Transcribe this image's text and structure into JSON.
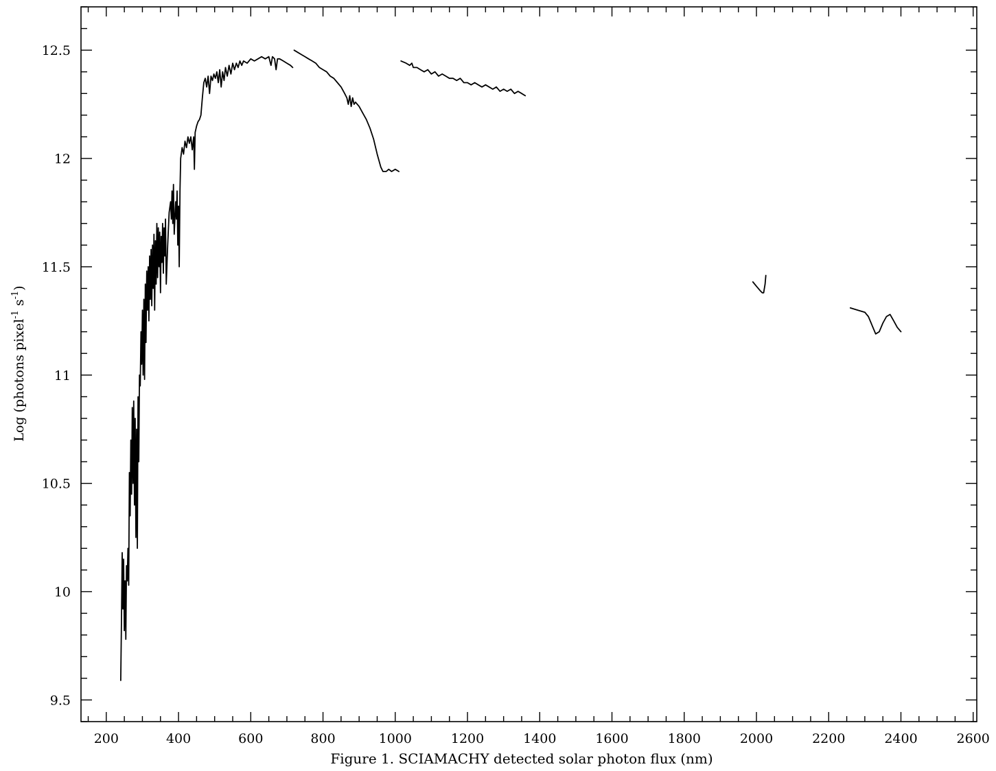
{
  "chart_data": {
    "type": "line",
    "title": "",
    "caption": "Figure 1.  SCIAMACHY detected solar photon flux (nm)",
    "ylabel": "Log (photons pixel",
    "ylabel_sup": "-1",
    "ylabel_mid": " s",
    "ylabel_sup2": "-1",
    "ylabel_end": ")",
    "xlim": [
      130,
      2610
    ],
    "ylim": [
      9.4,
      12.7
    ],
    "x_ticks": [
      200,
      400,
      600,
      800,
      1000,
      1200,
      1400,
      1600,
      1800,
      2000,
      2200,
      2400,
      2600
    ],
    "x_tick_labels": [
      "200",
      "400",
      "600",
      "800",
      "1000",
      "1200",
      "1400",
      "1600",
      "1800",
      "2000",
      "2200",
      "2400",
      "2600"
    ],
    "x_minor_step": 50,
    "y_ticks": [
      9.5,
      10,
      10.5,
      11,
      11.5,
      12,
      12.5
    ],
    "y_tick_labels": [
      "9.5",
      "10",
      "10.5",
      "11",
      "11.5",
      "12",
      "12.5"
    ],
    "y_minor_step": 0.1,
    "grid": false,
    "series": [
      {
        "values": [
          [
            240,
            9.59
          ],
          [
            242,
            9.85
          ],
          [
            244,
            10.18
          ],
          [
            246,
            9.92
          ],
          [
            248,
            10.15
          ],
          [
            250,
            9.82
          ],
          [
            252,
            10.05
          ],
          [
            254,
            9.78
          ],
          [
            256,
            10.12
          ],
          [
            258,
            10.05
          ],
          [
            260,
            10.2
          ],
          [
            262,
            10.03
          ],
          [
            264,
            10.55
          ],
          [
            266,
            10.35
          ],
          [
            268,
            10.7
          ],
          [
            270,
            10.45
          ],
          [
            272,
            10.85
          ],
          [
            274,
            10.5
          ],
          [
            276,
            10.88
          ],
          [
            278,
            10.4
          ],
          [
            280,
            10.8
          ],
          [
            282,
            10.25
          ],
          [
            284,
            10.75
          ],
          [
            286,
            10.2
          ],
          [
            288,
            10.9
          ],
          [
            290,
            10.6
          ],
          [
            292,
            11.0
          ],
          [
            294,
            10.95
          ],
          [
            296,
            11.2
          ],
          [
            298,
            11.05
          ],
          [
            300,
            11.3
          ],
          [
            302,
            11.0
          ],
          [
            304,
            11.35
          ],
          [
            306,
            10.98
          ],
          [
            308,
            11.42
          ],
          [
            310,
            11.15
          ],
          [
            312,
            11.48
          ],
          [
            314,
            11.3
          ],
          [
            316,
            11.5
          ],
          [
            318,
            11.25
          ],
          [
            320,
            11.55
          ],
          [
            322,
            11.35
          ],
          [
            324,
            11.58
          ],
          [
            326,
            11.32
          ],
          [
            328,
            11.6
          ],
          [
            330,
            11.4
          ],
          [
            332,
            11.65
          ],
          [
            334,
            11.3
          ],
          [
            336,
            11.62
          ],
          [
            338,
            11.42
          ],
          [
            340,
            11.7
          ],
          [
            342,
            11.45
          ],
          [
            344,
            11.68
          ],
          [
            346,
            11.5
          ],
          [
            348,
            11.66
          ],
          [
            350,
            11.38
          ],
          [
            352,
            11.64
          ],
          [
            354,
            11.52
          ],
          [
            356,
            11.7
          ],
          [
            358,
            11.47
          ],
          [
            360,
            11.68
          ],
          [
            362,
            11.55
          ],
          [
            364,
            11.72
          ],
          [
            366,
            11.42
          ],
          [
            370,
            11.6
          ],
          [
            374,
            11.75
          ],
          [
            378,
            11.8
          ],
          [
            380,
            11.72
          ],
          [
            382,
            11.85
          ],
          [
            384,
            11.7
          ],
          [
            386,
            11.88
          ],
          [
            388,
            11.65
          ],
          [
            392,
            11.8
          ],
          [
            394,
            11.72
          ],
          [
            396,
            11.85
          ],
          [
            398,
            11.6
          ],
          [
            400,
            11.78
          ],
          [
            402,
            11.5
          ],
          [
            404,
            11.85
          ],
          [
            406,
            12.0
          ],
          [
            410,
            12.05
          ],
          [
            414,
            12.02
          ],
          [
            418,
            12.08
          ],
          [
            422,
            12.05
          ],
          [
            426,
            12.1
          ],
          [
            430,
            12.07
          ],
          [
            434,
            12.1
          ],
          [
            438,
            12.04
          ],
          [
            442,
            12.1
          ],
          [
            444,
            11.95
          ],
          [
            446,
            12.12
          ],
          [
            450,
            12.15
          ],
          [
            454,
            12.17
          ],
          [
            458,
            12.18
          ],
          [
            462,
            12.2
          ],
          [
            466,
            12.28
          ],
          [
            470,
            12.35
          ],
          [
            474,
            12.37
          ],
          [
            478,
            12.33
          ],
          [
            482,
            12.38
          ],
          [
            486,
            12.3
          ],
          [
            490,
            12.38
          ],
          [
            494,
            12.36
          ],
          [
            498,
            12.39
          ],
          [
            502,
            12.37
          ],
          [
            506,
            12.4
          ],
          [
            510,
            12.35
          ],
          [
            514,
            12.41
          ],
          [
            518,
            12.33
          ],
          [
            522,
            12.4
          ],
          [
            526,
            12.36
          ],
          [
            530,
            12.42
          ],
          [
            535,
            12.38
          ],
          [
            540,
            12.43
          ],
          [
            545,
            12.39
          ],
          [
            550,
            12.44
          ],
          [
            555,
            12.41
          ],
          [
            560,
            12.44
          ],
          [
            565,
            12.42
          ],
          [
            570,
            12.45
          ],
          [
            575,
            12.43
          ],
          [
            580,
            12.45
          ],
          [
            590,
            12.44
          ],
          [
            600,
            12.46
          ],
          [
            610,
            12.45
          ],
          [
            620,
            12.46
          ],
          [
            630,
            12.47
          ],
          [
            640,
            12.46
          ],
          [
            650,
            12.47
          ],
          [
            656,
            12.43
          ],
          [
            660,
            12.47
          ],
          [
            666,
            12.46
          ],
          [
            670,
            12.41
          ],
          [
            674,
            12.46
          ],
          [
            680,
            12.46
          ],
          [
            690,
            12.45
          ],
          [
            700,
            12.44
          ],
          [
            710,
            12.43
          ],
          [
            716,
            12.42
          ]
        ]
      },
      {
        "values": [
          [
            720,
            12.5
          ],
          [
            730,
            12.49
          ],
          [
            740,
            12.48
          ],
          [
            750,
            12.47
          ],
          [
            760,
            12.46
          ],
          [
            770,
            12.45
          ],
          [
            780,
            12.44
          ],
          [
            790,
            12.42
          ],
          [
            800,
            12.41
          ],
          [
            810,
            12.4
          ],
          [
            820,
            12.38
          ],
          [
            830,
            12.37
          ],
          [
            840,
            12.35
          ],
          [
            850,
            12.33
          ],
          [
            860,
            12.3
          ],
          [
            866,
            12.28
          ],
          [
            870,
            12.25
          ],
          [
            874,
            12.29
          ],
          [
            878,
            12.24
          ],
          [
            882,
            12.28
          ],
          [
            886,
            12.25
          ],
          [
            890,
            12.26
          ],
          [
            900,
            12.24
          ],
          [
            910,
            12.21
          ],
          [
            920,
            12.18
          ],
          [
            930,
            12.14
          ],
          [
            940,
            12.09
          ],
          [
            950,
            12.02
          ],
          [
            960,
            11.96
          ],
          [
            966,
            11.94
          ],
          [
            975,
            11.94
          ],
          [
            982,
            11.95
          ],
          [
            990,
            11.94
          ],
          [
            1000,
            11.95
          ],
          [
            1010,
            11.94
          ]
        ]
      },
      {
        "values": [
          [
            1016,
            12.45
          ],
          [
            1030,
            12.44
          ],
          [
            1040,
            12.43
          ],
          [
            1046,
            12.44
          ],
          [
            1050,
            12.42
          ],
          [
            1060,
            12.42
          ],
          [
            1070,
            12.41
          ],
          [
            1080,
            12.4
          ],
          [
            1090,
            12.41
          ],
          [
            1100,
            12.39
          ],
          [
            1110,
            12.4
          ],
          [
            1120,
            12.38
          ],
          [
            1130,
            12.39
          ],
          [
            1140,
            12.38
          ],
          [
            1150,
            12.37
          ],
          [
            1160,
            12.37
          ],
          [
            1170,
            12.36
          ],
          [
            1180,
            12.37
          ],
          [
            1190,
            12.35
          ],
          [
            1200,
            12.35
          ],
          [
            1210,
            12.34
          ],
          [
            1220,
            12.35
          ],
          [
            1230,
            12.34
          ],
          [
            1240,
            12.33
          ],
          [
            1250,
            12.34
          ],
          [
            1260,
            12.33
          ],
          [
            1270,
            12.32
          ],
          [
            1280,
            12.33
          ],
          [
            1290,
            12.31
          ],
          [
            1300,
            12.32
          ],
          [
            1310,
            12.31
          ],
          [
            1320,
            12.32
          ],
          [
            1330,
            12.3
          ],
          [
            1340,
            12.31
          ],
          [
            1350,
            12.3
          ],
          [
            1360,
            12.29
          ]
        ]
      },
      {
        "values": [
          [
            1990,
            11.43
          ],
          [
            2000,
            11.41
          ],
          [
            2010,
            11.39
          ],
          [
            2016,
            11.38
          ],
          [
            2020,
            11.38
          ],
          [
            2024,
            11.42
          ],
          [
            2026,
            11.46
          ]
        ]
      },
      {
        "values": [
          [
            2260,
            11.31
          ],
          [
            2280,
            11.3
          ],
          [
            2300,
            11.29
          ],
          [
            2310,
            11.27
          ],
          [
            2320,
            11.23
          ],
          [
            2330,
            11.19
          ],
          [
            2340,
            11.2
          ],
          [
            2350,
            11.24
          ],
          [
            2360,
            11.27
          ],
          [
            2370,
            11.28
          ],
          [
            2380,
            11.25
          ],
          [
            2390,
            11.22
          ],
          [
            2400,
            11.2
          ]
        ]
      }
    ]
  }
}
